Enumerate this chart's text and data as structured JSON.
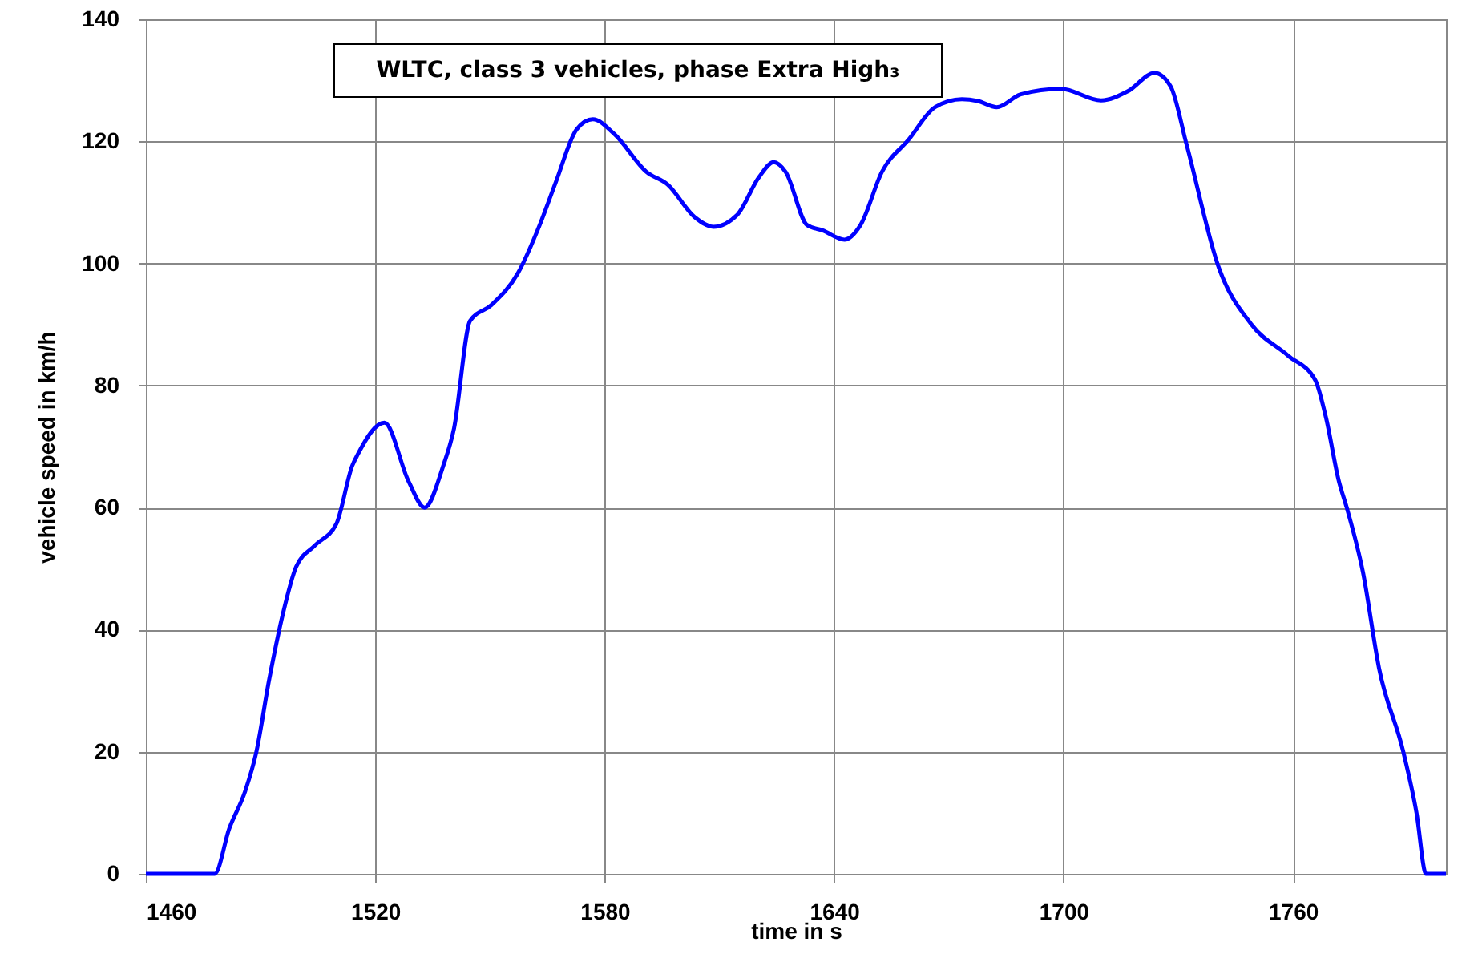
{
  "chart_data": {
    "type": "line",
    "title": "WLTC, class 3 vehicles, phase Extra High₃",
    "xlabel": "time in s",
    "ylabel": "vehicle speed in km/h",
    "x": [
      1460,
      1478,
      1481.8,
      1486,
      1488.8,
      1492.3,
      1495.8,
      1499.3,
      1504.2,
      1509.8,
      1514,
      1515.4,
      1522.4,
      1528.7,
      1532.9,
      1537.8,
      1540.6,
      1544.8,
      1550.4,
      1557.3,
      1563,
      1567.2,
      1572.7,
      1576.9,
      1582.5,
      1590.9,
      1596.5,
      1603.5,
      1608.4,
      1614.7,
      1620.3,
      1624.2,
      1627.3,
      1632.9,
      1637,
      1642.7,
      1646.9,
      1652.5,
      1659.5,
      1666.4,
      1673.4,
      1677.6,
      1682.5,
      1688.8,
      1699.3,
      1709.8,
      1716.8,
      1723.8,
      1728,
      1732.2,
      1740.6,
      1749,
      1758.7,
      1765.8,
      1768.6,
      1772,
      1774.1,
      1778.3,
      1782.5,
      1788.8,
      1792.3,
      1794.8,
      1800
    ],
    "series": [
      {
        "color": "#0000ff",
        "values": [
          0,
          0,
          7.4,
          13.6,
          19.7,
          32,
          42.5,
          50.3,
          53.8,
          57.3,
          66.9,
          68.7,
          73.9,
          64.3,
          60,
          66.9,
          73,
          90.6,
          93.2,
          98.4,
          106.3,
          113.3,
          122,
          123.6,
          121.2,
          115,
          112.9,
          107.6,
          106,
          108,
          114.1,
          116.6,
          115,
          106.3,
          105.4,
          103.9,
          106.3,
          115,
          120.3,
          125.6,
          126.9,
          126.6,
          125.6,
          127.7,
          128.6,
          126.7,
          128.2,
          131.2,
          129,
          119.4,
          99.3,
          90.1,
          84.9,
          80.9,
          74.8,
          64.3,
          59.9,
          49.4,
          33.7,
          20.1,
          10,
          0,
          0
        ]
      }
    ],
    "xlim": [
      1460,
      1800
    ],
    "xticks": [
      1460,
      1520,
      1580,
      1640,
      1700,
      1760
    ],
    "ylim": [
      0,
      140
    ],
    "yticks": [
      0,
      20,
      40,
      60,
      80,
      100,
      120,
      140
    ],
    "grid": true,
    "marker": "none",
    "line_style": "solid"
  }
}
